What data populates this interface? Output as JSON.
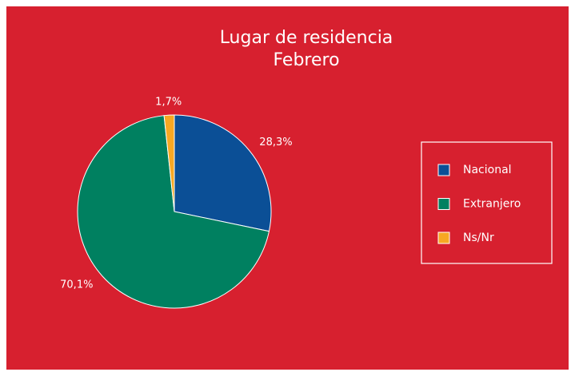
{
  "chart_data": {
    "type": "pie",
    "title": "Lugar de residencia",
    "subtitle": "Febrero",
    "categories": [
      "Nacional",
      "Extranjero",
      "Ns/Nr"
    ],
    "values": [
      28.3,
      70.1,
      1.7
    ],
    "value_labels": [
      "28,3%",
      "70,1%",
      "1,7%"
    ],
    "colors": [
      "#0b4f96",
      "#008060",
      "#f7a823"
    ],
    "legend": "right"
  }
}
